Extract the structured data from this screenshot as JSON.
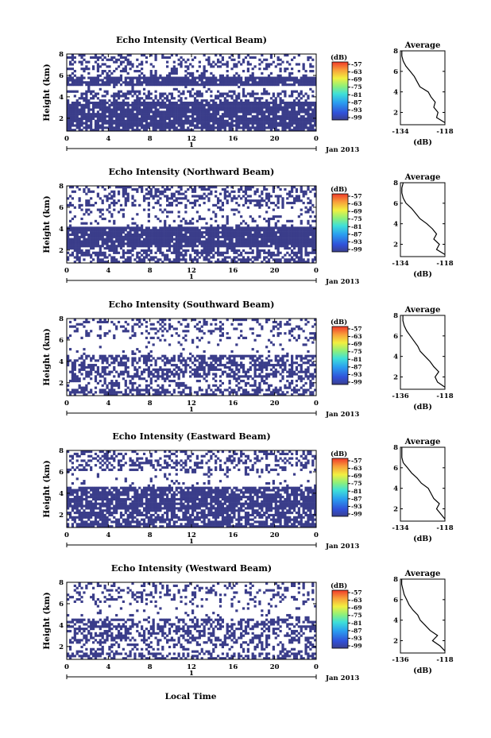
{
  "figure": {
    "xlabel": "Local Time",
    "date_label": "Jan 2013",
    "day_label": "1",
    "cbar_unit": "(dB)",
    "avg_title": "Average",
    "avg_xlabel": "(dB)"
  },
  "chart_data": [
    {
      "type": "heatmap",
      "title": "Echo Intensity (Vertical Beam)",
      "ylabel": "Height (km)",
      "xticks": [
        "0",
        "4",
        "8",
        "12",
        "16",
        "20",
        "0"
      ],
      "yticks": [
        "2",
        "4",
        "6",
        "8"
      ],
      "xlim": [
        0,
        24
      ],
      "ylim": [
        0.8,
        8
      ],
      "colorbar": {
        "ticks": [
          "-57",
          "-63",
          "-69",
          "-75",
          "-81",
          "-87",
          "-93",
          "-99"
        ],
        "range": [
          -99,
          -57
        ]
      },
      "bands": [
        [
          5.8,
          8.0,
          0.3
        ],
        [
          5.1,
          5.8,
          0.9
        ],
        [
          4.6,
          5.1,
          0.05
        ],
        [
          3.6,
          4.6,
          0.45
        ],
        [
          1.2,
          3.6,
          0.9
        ],
        [
          0.8,
          1.2,
          0.75
        ]
      ],
      "profile": {
        "title": "Average",
        "xlabel": "(dB)",
        "xticks": [
          "-134",
          "-118"
        ],
        "xlim": [
          -134,
          -118
        ],
        "yticks": [
          "2",
          "4",
          "6",
          "8"
        ],
        "ylim": [
          0.8,
          8
        ],
        "heights": [
          1.0,
          1.5,
          2.0,
          2.5,
          3.0,
          3.5,
          4.0,
          4.5,
          5.0,
          5.5,
          6.0,
          6.5,
          7.0,
          7.5,
          8.0
        ],
        "values": [
          -118,
          -121,
          -120.5,
          -122,
          -121.5,
          -123,
          -124,
          -127,
          -128,
          -129,
          -130.5,
          -132,
          -133,
          -133.5,
          -133.5
        ]
      }
    },
    {
      "type": "heatmap",
      "title": "Echo Intensity (Northward Beam)",
      "ylabel": "Height (km)",
      "xticks": [
        "0",
        "4",
        "8",
        "12",
        "16",
        "20",
        "0"
      ],
      "yticks": [
        "2",
        "4",
        "6",
        "8"
      ],
      "xlim": [
        0,
        24
      ],
      "ylim": [
        0.8,
        8
      ],
      "colorbar": {
        "ticks": [
          "-57",
          "-63",
          "-69",
          "-75",
          "-81",
          "-87",
          "-93",
          "-99"
        ],
        "range": [
          -99,
          -57
        ]
      },
      "bands": [
        [
          6.0,
          8.0,
          0.4
        ],
        [
          4.8,
          6.0,
          0.15
        ],
        [
          4.2,
          4.8,
          0.2
        ],
        [
          2.2,
          4.2,
          0.92
        ],
        [
          0.8,
          2.2,
          0.55
        ]
      ],
      "profile": {
        "title": "Average",
        "xlabel": "(dB)",
        "xticks": [
          "-134",
          "-118"
        ],
        "xlim": [
          -134,
          -118
        ],
        "yticks": [
          "2",
          "4",
          "6",
          "8"
        ],
        "ylim": [
          0.8,
          8
        ],
        "heights": [
          1.0,
          1.5,
          2.0,
          2.5,
          3.0,
          3.5,
          4.0,
          4.5,
          5.0,
          5.5,
          6.0,
          6.5,
          7.0,
          7.5,
          8.0
        ],
        "values": [
          -118,
          -121,
          -120,
          -122,
          -121,
          -122.5,
          -124.5,
          -127,
          -128.5,
          -130,
          -132,
          -133,
          -133.5,
          -133.5,
          -133
        ]
      }
    },
    {
      "type": "heatmap",
      "title": "Echo Intensity (Southward Beam)",
      "ylabel": "Height (km)",
      "xticks": [
        "0",
        "4",
        "8",
        "12",
        "16",
        "20",
        "0"
      ],
      "yticks": [
        "2",
        "4",
        "6",
        "8"
      ],
      "xlim": [
        0,
        24
      ],
      "ylim": [
        0.8,
        8
      ],
      "colorbar": {
        "ticks": [
          "-57",
          "-63",
          "-69",
          "-75",
          "-81",
          "-87",
          "-93",
          "-99"
        ],
        "range": [
          -99,
          -57
        ]
      },
      "bands": [
        [
          6.0,
          8.0,
          0.25
        ],
        [
          4.6,
          6.0,
          0.08
        ],
        [
          2.5,
          4.6,
          0.55
        ],
        [
          1.5,
          2.5,
          0.35
        ],
        [
          0.8,
          1.5,
          0.6
        ]
      ],
      "profile": {
        "title": "Average",
        "xlabel": "(dB)",
        "xticks": [
          "-136",
          "-118"
        ],
        "xlim": [
          -136,
          -118
        ],
        "yticks": [
          "2",
          "4",
          "6",
          "8"
        ],
        "ylim": [
          0.8,
          8
        ],
        "heights": [
          1.0,
          1.5,
          2.0,
          2.5,
          3.0,
          3.5,
          4.0,
          4.5,
          5.0,
          5.5,
          6.0,
          6.5,
          7.0,
          7.5,
          8.0
        ],
        "values": [
          -118,
          -121,
          -122,
          -120.5,
          -122.5,
          -124,
          -126,
          -128,
          -129,
          -130.5,
          -132,
          -133.5,
          -134.5,
          -135,
          -135
        ]
      }
    },
    {
      "type": "heatmap",
      "title": "Echo Intensity (Eastward Beam)",
      "ylabel": "Height (km)",
      "xticks": [
        "0",
        "4",
        "8",
        "12",
        "16",
        "20",
        "0"
      ],
      "yticks": [
        "2",
        "4",
        "6",
        "8"
      ],
      "xlim": [
        0,
        24
      ],
      "ylim": [
        0.8,
        8
      ],
      "colorbar": {
        "ticks": [
          "-57",
          "-63",
          "-69",
          "-75",
          "-81",
          "-87",
          "-93",
          "-99"
        ],
        "range": [
          -99,
          -57
        ]
      },
      "bands": [
        [
          6.0,
          8.0,
          0.4
        ],
        [
          4.6,
          6.0,
          0.1
        ],
        [
          2.4,
          4.6,
          0.85
        ],
        [
          1.0,
          2.4,
          0.7
        ],
        [
          0.8,
          1.0,
          0.9
        ]
      ],
      "profile": {
        "title": "Average",
        "xlabel": "(dB)",
        "xticks": [
          "-134",
          "-118"
        ],
        "xlim": [
          -134,
          -118
        ],
        "yticks": [
          "2",
          "4",
          "6",
          "8"
        ],
        "ylim": [
          0.8,
          8
        ],
        "heights": [
          1.0,
          1.5,
          2.0,
          2.5,
          3.0,
          3.5,
          4.0,
          4.5,
          5.0,
          5.5,
          6.0,
          6.5,
          7.0,
          7.5,
          8.0
        ],
        "values": [
          -118,
          -119.5,
          -121,
          -120,
          -122,
          -123,
          -124,
          -126.5,
          -128,
          -130,
          -131.5,
          -133,
          -133.5,
          -133.5,
          -133.5
        ]
      }
    },
    {
      "type": "heatmap",
      "title": "Echo Intensity (Westward Beam)",
      "ylabel": "Height (km)",
      "xticks": [
        "0",
        "4",
        "8",
        "12",
        "16",
        "20",
        "0"
      ],
      "yticks": [
        "2",
        "4",
        "6",
        "8"
      ],
      "xlim": [
        0,
        24
      ],
      "ylim": [
        0.8,
        8
      ],
      "colorbar": {
        "ticks": [
          "-57",
          "-63",
          "-69",
          "-75",
          "-81",
          "-87",
          "-93",
          "-99"
        ],
        "range": [
          -99,
          -57
        ]
      },
      "bands": [
        [
          6.0,
          8.0,
          0.25
        ],
        [
          4.6,
          6.0,
          0.08
        ],
        [
          2.5,
          4.6,
          0.5
        ],
        [
          1.5,
          2.5,
          0.3
        ],
        [
          0.8,
          1.5,
          0.55
        ]
      ],
      "profile": {
        "title": "Average",
        "xlabel": "(dB)",
        "xticks": [
          "-136",
          "-118"
        ],
        "xlim": [
          -136,
          -118
        ],
        "yticks": [
          "2",
          "4",
          "6",
          "8"
        ],
        "ylim": [
          0.8,
          8
        ],
        "heights": [
          1.0,
          1.5,
          2.0,
          2.5,
          3.0,
          3.5,
          4.0,
          4.5,
          5.0,
          5.5,
          6.0,
          6.5,
          7.0,
          7.5,
          8.0
        ],
        "values": [
          -118,
          -120,
          -123,
          -121,
          -124,
          -126,
          -128,
          -129,
          -131,
          -132.5,
          -133.5,
          -134.5,
          -135,
          -135.5,
          -135.5
        ]
      }
    }
  ]
}
